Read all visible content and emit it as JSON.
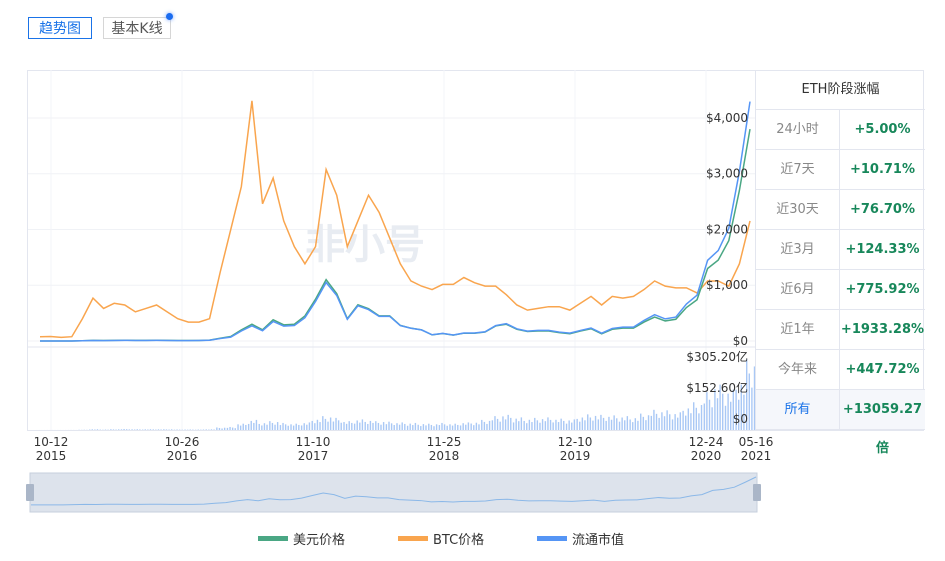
{
  "tabs": [
    {
      "label": "趋势图",
      "active": true
    },
    {
      "label": "基本K线",
      "active": false
    }
  ],
  "watermark": "非小号",
  "table": {
    "title": "ETH阶段涨幅",
    "rows": [
      {
        "label": "24小时",
        "value": "+5.00%"
      },
      {
        "label": "近7天",
        "value": "+10.71%"
      },
      {
        "label": "近30天",
        "value": "+76.70%"
      },
      {
        "label": "近3月",
        "value": "+124.33%"
      },
      {
        "label": "近6月",
        "value": "+775.92%"
      },
      {
        "label": "近1年",
        "value": "+1933.28%"
      },
      {
        "label": "今年来",
        "value": "+447.72%"
      },
      {
        "label": "所有",
        "value": "+13059.27倍"
      }
    ]
  },
  "legend": [
    {
      "label": "美元价格",
      "color": "#4aa784"
    },
    {
      "label": "BTC价格",
      "color": "#f9a54e"
    },
    {
      "label": "流通市值",
      "color": "#5595f5"
    }
  ],
  "chart_data": {
    "type": "line",
    "grid": true,
    "legend_position": "bottom",
    "price_axis": {
      "ticks": [
        "$0",
        "$1,000",
        "$2,000",
        "$3,000",
        "$4,000"
      ],
      "tick_values": [
        0,
        1000,
        2000,
        3000,
        4000
      ],
      "ylim": [
        0,
        4860
      ]
    },
    "volume_axis": {
      "ticks": [
        "$0",
        "$152.60亿",
        "$305.20亿"
      ],
      "tick_values": [
        0,
        152.6,
        305.2
      ]
    },
    "x_ticks": [
      {
        "l1": "10-12",
        "l2": "2015"
      },
      {
        "l1": "10-26",
        "l2": "2016"
      },
      {
        "l1": "11-10",
        "l2": "2017"
      },
      {
        "l1": "11-25",
        "l2": "2018"
      },
      {
        "l1": "12-10",
        "l2": "2019"
      },
      {
        "l1": "12-24",
        "l2": "2020"
      },
      {
        "l1": "05-16",
        "l2": "2021"
      }
    ],
    "x": [
      "2015-10",
      "2015-11",
      "2015-12",
      "2016-01",
      "2016-02",
      "2016-03",
      "2016-04",
      "2016-05",
      "2016-06",
      "2016-07",
      "2016-08",
      "2016-09",
      "2016-10",
      "2016-11",
      "2016-12",
      "2017-01",
      "2017-02",
      "2017-03",
      "2017-04",
      "2017-05",
      "2017-06",
      "2017-07",
      "2017-08",
      "2017-09",
      "2017-10",
      "2017-11",
      "2017-12",
      "2018-01",
      "2018-02",
      "2018-03",
      "2018-04",
      "2018-05",
      "2018-06",
      "2018-07",
      "2018-08",
      "2018-09",
      "2018-10",
      "2018-11",
      "2018-12",
      "2019-01",
      "2019-02",
      "2019-03",
      "2019-04",
      "2019-05",
      "2019-06",
      "2019-07",
      "2019-08",
      "2019-09",
      "2019-10",
      "2019-11",
      "2019-12",
      "2020-01",
      "2020-02",
      "2020-03",
      "2020-04",
      "2020-05",
      "2020-06",
      "2020-07",
      "2020-08",
      "2020-09",
      "2020-10",
      "2020-11",
      "2020-12",
      "2021-01",
      "2021-02",
      "2021-03",
      "2021-04",
      "2021-05"
    ],
    "series": [
      {
        "name": "美元价格",
        "color": "#4aa784",
        "values": [
          0.6,
          0.9,
          0.9,
          1,
          5,
          11,
          8,
          12,
          14,
          11,
          11,
          13,
          12,
          9,
          8,
          10,
          15,
          50,
          80,
          200,
          300,
          200,
          380,
          290,
          300,
          450,
          750,
          1100,
          850,
          400,
          650,
          580,
          450,
          450,
          280,
          230,
          200,
          110,
          135,
          105,
          140,
          140,
          160,
          270,
          300,
          210,
          170,
          180,
          180,
          150,
          130,
          180,
          220,
          130,
          210,
          230,
          230,
          340,
          430,
          360,
          390,
          600,
          740,
          1300,
          1450,
          1800,
          2700,
          3800
        ]
      },
      {
        "name": "BTC价格",
        "color": "#f9a54e",
        "values": [
          0.0025,
          0.0026,
          0.0021,
          0.0025,
          0.013,
          0.025,
          0.019,
          0.022,
          0.021,
          0.017,
          0.019,
          0.021,
          0.017,
          0.013,
          0.011,
          0.011,
          0.013,
          0.04,
          0.065,
          0.09,
          0.14,
          0.08,
          0.095,
          0.07,
          0.055,
          0.045,
          0.055,
          0.1,
          0.085,
          0.055,
          0.07,
          0.085,
          0.075,
          0.06,
          0.045,
          0.035,
          0.032,
          0.03,
          0.033,
          0.033,
          0.037,
          0.034,
          0.032,
          0.032,
          0.027,
          0.021,
          0.018,
          0.019,
          0.02,
          0.02,
          0.018,
          0.022,
          0.026,
          0.021,
          0.026,
          0.025,
          0.026,
          0.03,
          0.035,
          0.032,
          0.031,
          0.031,
          0.028,
          0.035,
          0.035,
          0.032,
          0.045,
          0.07
        ]
      },
      {
        "name": "流通市值",
        "color": "#5595f5",
        "values": [
          0.5,
          0.7,
          0.7,
          0.8,
          4,
          9,
          6,
          10,
          12,
          9,
          9,
          11,
          10,
          8,
          7,
          9,
          13,
          45,
          72,
          185,
          280,
          190,
          360,
          275,
          285,
          430,
          730,
          1080,
          840,
          400,
          650,
          580,
          455,
          455,
          285,
          235,
          205,
          115,
          140,
          110,
          148,
          148,
          170,
          285,
          320,
          225,
          182,
          195,
          195,
          165,
          145,
          195,
          240,
          145,
          232,
          255,
          256,
          380,
          485,
          408,
          442,
          682,
          845,
          1490,
          1670,
          2080,
          3130,
          4420
        ]
      },
      {
        "name": "成交额",
        "color": "#a9c8f5",
        "values": [
          0.1,
          0.2,
          0.2,
          0.3,
          1,
          3,
          2,
          3,
          4,
          3,
          3,
          3,
          3,
          2,
          2,
          2,
          3,
          10,
          12,
          25,
          40,
          30,
          35,
          28,
          25,
          30,
          45,
          55,
          48,
          35,
          42,
          40,
          35,
          33,
          30,
          28,
          26,
          25,
          28,
          25,
          30,
          32,
          40,
          55,
          60,
          50,
          45,
          48,
          50,
          45,
          42,
          55,
          62,
          60,
          58,
          55,
          52,
          65,
          80,
          78,
          70,
          95,
          110,
          150,
          180,
          160,
          200,
          280
        ]
      }
    ],
    "volume_ylim": [
      0,
      305.2
    ],
    "btc_ylim": [
      0,
      0.158
    ]
  }
}
